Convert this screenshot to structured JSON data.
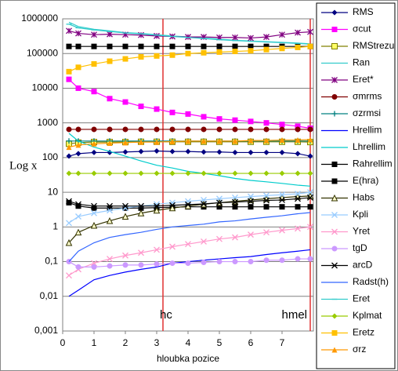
{
  "chart_data": {
    "type": "line",
    "log_y": true,
    "grid": true,
    "ylabel": "Log x",
    "xlabel": "hloubka pozice",
    "xlim": [
      0,
      8
    ],
    "xticks": [
      0,
      1,
      2,
      3,
      4,
      5,
      6,
      7
    ],
    "ylim": [
      0.001,
      1000000
    ],
    "yticks": [
      {
        "value": 0.001,
        "label": "0,001"
      },
      {
        "value": 0.01,
        "label": "0,01"
      },
      {
        "value": 0.1,
        "label": "0,1"
      },
      1,
      10,
      100,
      1000,
      10000,
      100000,
      1000000
    ],
    "annotations": [
      {
        "x": 3.2,
        "label": "hc",
        "color": "#e03030"
      },
      {
        "x": 7.9,
        "label": "hmel",
        "color": "#e03030"
      }
    ],
    "x": [
      0.2,
      0.5,
      1,
      1.5,
      2,
      2.5,
      3,
      3.5,
      4,
      4.5,
      5,
      5.5,
      6,
      6.5,
      7,
      7.5,
      7.9
    ],
    "series": [
      {
        "name": "RMS",
        "color": "#000080",
        "marker": "diamond",
        "values": [
          110,
          130,
          140,
          140,
          145,
          150,
          155,
          150,
          150,
          145,
          145,
          140,
          140,
          140,
          140,
          130,
          110
        ]
      },
      {
        "name": "σcut",
        "color": "#ff00ff",
        "marker": "square",
        "values": [
          18000,
          10000,
          8000,
          5000,
          4000,
          3000,
          2500,
          2000,
          1800,
          1500,
          1300,
          1200,
          1100,
          1000,
          900,
          800,
          700
        ]
      },
      {
        "name": "RMStrezu",
        "color": "#808000",
        "marker": "osquare",
        "values": [
          250,
          270,
          280,
          280,
          280,
          285,
          285,
          285,
          285,
          285,
          285,
          285,
          285,
          285,
          285,
          285,
          280
        ]
      },
      {
        "name": "Ran",
        "color": "#33cccc",
        "marker": "none",
        "values": [
          800000,
          600000,
          500000,
          450000,
          400000,
          380000,
          350000,
          320000,
          300000,
          280000,
          260000,
          240000,
          230000,
          220000,
          210000,
          200000,
          190000
        ]
      },
      {
        "name": "Eret*",
        "color": "#800080",
        "marker": "star",
        "values": [
          450000,
          380000,
          350000,
          360000,
          350000,
          340000,
          320000,
          310000,
          300000,
          300000,
          290000,
          290000,
          280000,
          300000,
          350000,
          400000,
          420000
        ]
      },
      {
        "name": "σmrms",
        "color": "#800000",
        "marker": "circle",
        "values": [
          650,
          650,
          650,
          650,
          650,
          650,
          650,
          650,
          650,
          650,
          650,
          650,
          650,
          650,
          650,
          650,
          650
        ]
      },
      {
        "name": "σzrmsi",
        "color": "#008080",
        "marker": "plus",
        "values": [
          300,
          300,
          300,
          300,
          300,
          300,
          300,
          300,
          300,
          300,
          300,
          300,
          300,
          300,
          300,
          300,
          300
        ]
      },
      {
        "name": "Hrellim",
        "color": "#0000ff",
        "marker": "none",
        "values": [
          0.01,
          0.015,
          0.03,
          0.04,
          0.05,
          0.06,
          0.07,
          0.09,
          0.1,
          0.11,
          0.12,
          0.13,
          0.14,
          0.16,
          0.18,
          0.2,
          0.22
        ]
      },
      {
        "name": "Lhrellim",
        "color": "#00cccc",
        "marker": "none",
        "values": [
          500,
          300,
          200,
          150,
          110,
          80,
          60,
          50,
          40,
          35,
          30,
          25,
          22,
          20,
          18,
          16,
          15
        ]
      },
      {
        "name": "Rahrellim",
        "color": "#000000",
        "marker": "square",
        "values": [
          5,
          4,
          3.5,
          3.5,
          3.5,
          3.5,
          3.6,
          3.7,
          3.8,
          3.8,
          3.8,
          3.8,
          3.8,
          3.8,
          3.8,
          3.8,
          3.8
        ]
      },
      {
        "name": "E(hra)",
        "color": "#000000",
        "marker": "square",
        "values": [
          160000,
          160000,
          160000,
          160000,
          160000,
          160000,
          160000,
          160000,
          160000,
          160000,
          160000,
          160000,
          160000,
          160000,
          160000,
          160000,
          160000
        ]
      },
      {
        "name": "Habs",
        "color": "#333300",
        "marker": "otriangle",
        "values": [
          0.35,
          0.7,
          1.1,
          1.5,
          2,
          2.5,
          3,
          3.5,
          4,
          4.5,
          5,
          5.5,
          6,
          6.5,
          7,
          7.5,
          7.8
        ]
      },
      {
        "name": "Kpli",
        "color": "#99ccff",
        "marker": "x",
        "values": [
          1.3,
          2,
          2.5,
          3,
          3.5,
          4,
          4.5,
          5,
          5.5,
          6,
          6.5,
          7,
          7.5,
          8,
          8.5,
          9,
          10
        ]
      },
      {
        "name": "Yret",
        "color": "#ff99cc",
        "marker": "x",
        "values": [
          0.04,
          0.06,
          0.09,
          0.12,
          0.15,
          0.18,
          0.22,
          0.27,
          0.32,
          0.38,
          0.45,
          0.5,
          0.6,
          0.7,
          0.8,
          0.9,
          1
        ]
      },
      {
        "name": "tgD",
        "color": "#cc99ff",
        "marker": "circle",
        "values": [
          0.1,
          0.07,
          0.07,
          0.075,
          0.08,
          0.08,
          0.085,
          0.09,
          0.09,
          0.095,
          0.1,
          0.1,
          0.1,
          0.11,
          0.11,
          0.12,
          0.12
        ]
      },
      {
        "name": "arcD",
        "color": "#000000",
        "marker": "x",
        "values": [
          5.5,
          4.5,
          4,
          4,
          4,
          4,
          4,
          4.2,
          4.4,
          4.6,
          5,
          5.2,
          5.5,
          5.8,
          6,
          6.5,
          7
        ]
      },
      {
        "name": "Radst(h)",
        "color": "#3366ff",
        "marker": "none",
        "values": [
          0.1,
          0.2,
          0.35,
          0.5,
          0.6,
          0.7,
          0.85,
          1,
          1.1,
          1.2,
          1.4,
          1.5,
          1.7,
          1.9,
          2.1,
          2.4,
          2.6
        ]
      },
      {
        "name": "Eret",
        "color": "#33cccc",
        "marker": "dash",
        "values": [
          700000,
          550000,
          480000,
          430000,
          390000,
          370000,
          340000,
          310000,
          290000,
          270000,
          250000,
          235000,
          225000,
          215000,
          205000,
          195000,
          185000
        ]
      },
      {
        "name": "Kplmat",
        "color": "#99cc00",
        "marker": "diamond",
        "values": [
          35,
          35,
          35,
          35,
          35,
          35,
          35,
          35,
          35,
          35,
          35,
          35,
          35,
          35,
          35,
          35,
          35
        ]
      },
      {
        "name": "Eretz",
        "color": "#ffc000",
        "marker": "square",
        "values": [
          30000,
          40000,
          50000,
          60000,
          70000,
          80000,
          85000,
          90000,
          100000,
          105000,
          110000,
          115000,
          120000,
          130000,
          140000,
          150000,
          160000
        ]
      },
      {
        "name": "σrz",
        "color": "#ff9900",
        "marker": "triangle",
        "values": [
          200,
          230,
          250,
          260,
          270,
          280,
          280,
          290,
          300,
          300,
          300,
          300,
          310,
          310,
          320,
          320,
          330
        ]
      }
    ]
  }
}
